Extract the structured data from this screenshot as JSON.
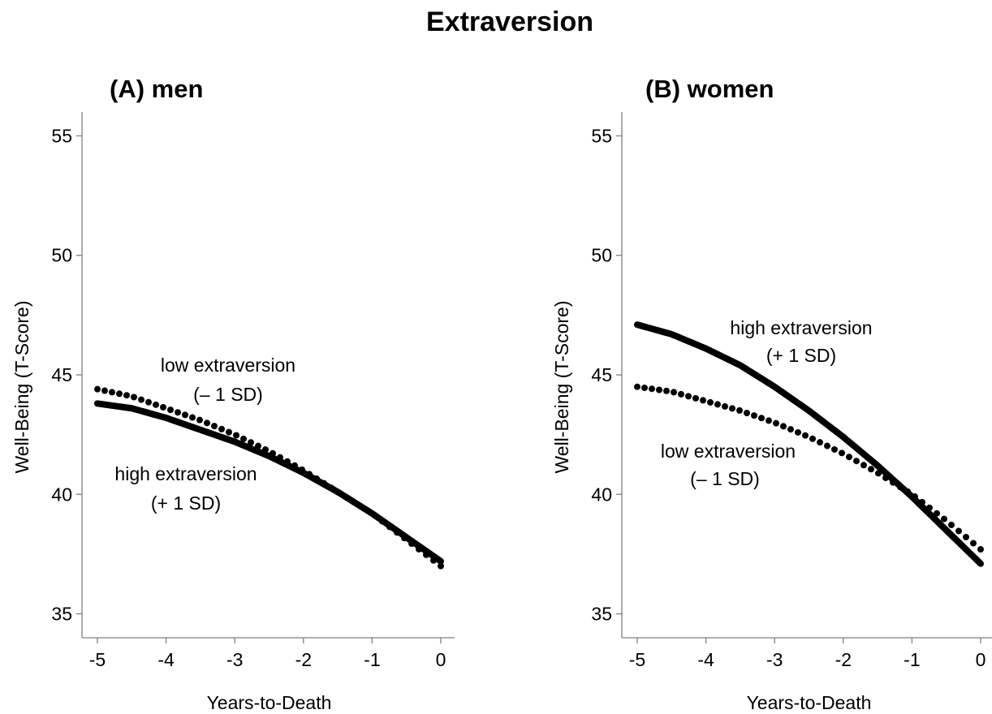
{
  "title": "Extraversion",
  "chart_data": [
    {
      "type": "line",
      "title": "(A) men",
      "xlabel": "Years-to-Death",
      "ylabel": "Well-Being (T-Score)",
      "xlim": [
        -5,
        0
      ],
      "ylim": [
        34,
        56
      ],
      "xticks": [
        -5,
        -4,
        -3,
        -2,
        -1,
        0
      ],
      "yticks": [
        35,
        40,
        45,
        50,
        55
      ],
      "grid": false,
      "series": [
        {
          "name": "low extraversion (– 1 SD)",
          "style": "dotted",
          "x": [
            -5,
            -4.5,
            -4,
            -3.5,
            -3,
            -2.5,
            -2,
            -1.5,
            -1,
            -0.5,
            0
          ],
          "y": [
            44.4,
            44.1,
            43.6,
            43.1,
            42.5,
            41.8,
            41.0,
            40.1,
            39.2,
            38.1,
            37.0
          ]
        },
        {
          "name": "high extraversion (+ 1 SD)",
          "style": "solid",
          "x": [
            -5,
            -4.5,
            -4,
            -3.5,
            -3,
            -2.5,
            -2,
            -1.5,
            -1,
            -0.5,
            0
          ],
          "y": [
            43.8,
            43.6,
            43.2,
            42.7,
            42.2,
            41.6,
            40.9,
            40.1,
            39.2,
            38.2,
            37.2
          ]
        }
      ],
      "annotations": [
        {
          "lines": [
            "low extraversion",
            "(– 1 SD)"
          ]
        },
        {
          "lines": [
            "high extraversion",
            "(+ 1 SD)"
          ]
        }
      ]
    },
    {
      "type": "line",
      "title": "(B) women",
      "xlabel": "Years-to-Death",
      "ylabel": "Well-Being (T-Score)",
      "xlim": [
        -5,
        0
      ],
      "ylim": [
        34,
        56
      ],
      "xticks": [
        -5,
        -4,
        -3,
        -2,
        -1,
        0
      ],
      "yticks": [
        35,
        40,
        45,
        50,
        55
      ],
      "grid": false,
      "series": [
        {
          "name": "high extraversion (+ 1 SD)",
          "style": "solid",
          "x": [
            -5,
            -4.5,
            -4,
            -3.5,
            -3,
            -2.5,
            -2,
            -1.5,
            -1,
            -0.5,
            0
          ],
          "y": [
            47.1,
            46.7,
            46.1,
            45.4,
            44.5,
            43.5,
            42.4,
            41.2,
            39.9,
            38.5,
            37.1
          ]
        },
        {
          "name": "low extraversion (– 1 SD)",
          "style": "dotted",
          "x": [
            -5,
            -4.5,
            -4,
            -3.5,
            -3,
            -2.5,
            -2,
            -1.5,
            -1,
            -0.5,
            0
          ],
          "y": [
            44.5,
            44.3,
            43.9,
            43.5,
            43.0,
            42.4,
            41.7,
            40.9,
            40.0,
            38.9,
            37.7
          ]
        }
      ],
      "annotations": [
        {
          "lines": [
            "high extraversion",
            "(+ 1 SD)"
          ]
        },
        {
          "lines": [
            "low extraversion",
            "(– 1 SD)"
          ]
        }
      ]
    }
  ]
}
